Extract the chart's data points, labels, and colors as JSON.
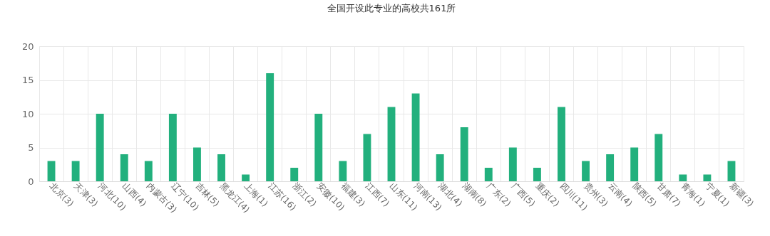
{
  "chart_data": {
    "type": "bar",
    "title": "全国开设此专业的高校共161所",
    "categories": [
      "北京(3)",
      "天津(3)",
      "河北(10)",
      "山西(4)",
      "内蒙古(3)",
      "辽宁(10)",
      "吉林(5)",
      "黑龙江(4)",
      "上海(1)",
      "江苏(16)",
      "浙江(2)",
      "安徽(10)",
      "福建(3)",
      "江西(7)",
      "山东(11)",
      "河南(13)",
      "湖北(4)",
      "湖南(8)",
      "广东(2)",
      "广西(5)",
      "重庆(2)",
      "四川(11)",
      "贵州(3)",
      "云南(4)",
      "陕西(5)",
      "甘肃(7)",
      "青海(1)",
      "宁夏(1)",
      "新疆(3)"
    ],
    "values": [
      3,
      3,
      10,
      4,
      3,
      10,
      5,
      4,
      1,
      16,
      2,
      10,
      3,
      7,
      11,
      13,
      4,
      8,
      2,
      5,
      2,
      11,
      3,
      4,
      5,
      7,
      1,
      1,
      3
    ],
    "color": "#22b07d",
    "ylim": [
      0,
      20
    ],
    "yticks": [
      0,
      5,
      10,
      15,
      20
    ],
    "grid": true
  }
}
